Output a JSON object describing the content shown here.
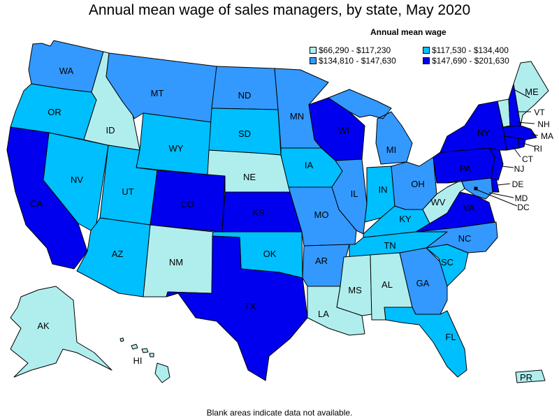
{
  "title": "Annual mean wage of sales managers, by state, May 2020",
  "legend": {
    "title": "Annual mean wage",
    "items": [
      {
        "label": "$66,290 - $117,230",
        "color": "#b0eeee"
      },
      {
        "label": "$117,530 - $134,400",
        "color": "#00bfff"
      },
      {
        "label": "$134,810 - $147,630",
        "color": "#3399ff"
      },
      {
        "label": "$147,690 - $201,630",
        "color": "#0000ee"
      }
    ]
  },
  "footnote": "Blank areas indicate data not available.",
  "states": {
    "WA": 3,
    "OR": 2,
    "CA": 4,
    "NV": 2,
    "ID": 1,
    "MT": 3,
    "WY": 2,
    "UT": 2,
    "AZ": 2,
    "CO": 4,
    "NM": 1,
    "ND": 3,
    "SD": 2,
    "NE": 1,
    "KS": 4,
    "OK": 2,
    "TX": 4,
    "MN": 3,
    "IA": 2,
    "MO": 3,
    "AR": 3,
    "LA": 1,
    "WI": 4,
    "IL": 3,
    "MI": 3,
    "IN": 2,
    "OH": 3,
    "KY": 2,
    "TN": 2,
    "MS": 1,
    "AL": 1,
    "GA": 3,
    "FL": 2,
    "SC": 2,
    "NC": 3,
    "VA": 4,
    "WV": 1,
    "PA": 4,
    "NY": 4,
    "ME": 1,
    "VT": 1,
    "NH": 4,
    "MA": 4,
    "RI": 4,
    "CT": 4,
    "NJ": 4,
    "DE": 4,
    "MD": 3,
    "DC": 4,
    "AK": 1,
    "HI": 1,
    "PR": 1
  }
}
